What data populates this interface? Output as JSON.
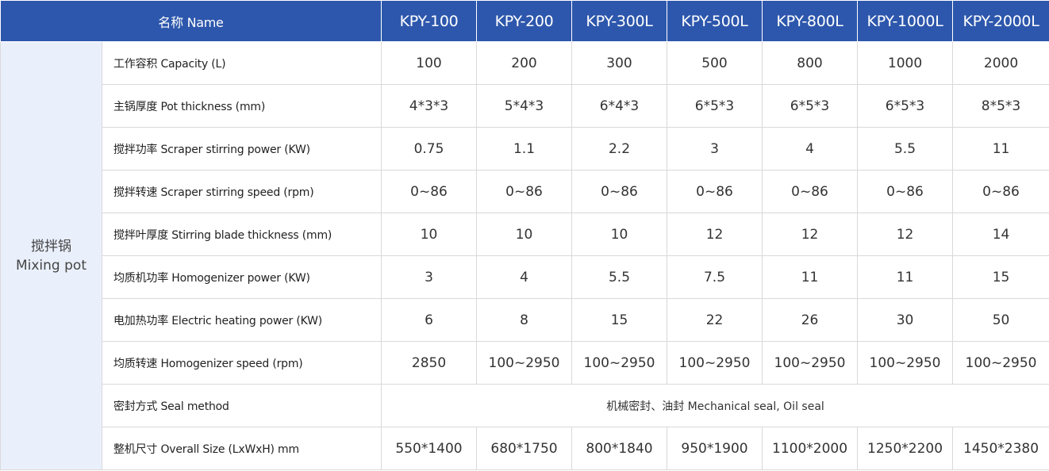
{
  "header": {
    "name_label": "名称 Name",
    "models": [
      "KPY-100",
      "KPY-200",
      "KPY-300L",
      "KPY-500L",
      "KPY-800L",
      "KPY-1000L",
      "KPY-2000L"
    ]
  },
  "group": {
    "label_zh": "搅拌锅",
    "label_en": "Mixing pot"
  },
  "rows": [
    {
      "label": "工作容积 Capacity (L)",
      "values": [
        "100",
        "200",
        "300",
        "500",
        "800",
        "1000",
        "2000"
      ]
    },
    {
      "label": "主锅厚度 Pot thickness (mm)",
      "values": [
        "4*3*3",
        "5*4*3",
        "6*4*3",
        "6*5*3",
        "6*5*3",
        "6*5*3",
        "8*5*3"
      ]
    },
    {
      "label": "搅拌功率 Scraper stirring power (KW)",
      "values": [
        "0.75",
        "1.1",
        "2.2",
        "3",
        "4",
        "5.5",
        "11"
      ]
    },
    {
      "label": "搅拌转速 Scraper stirring speed (rpm)",
      "values": [
        "0~86",
        "0~86",
        "0~86",
        "0~86",
        "0~86",
        "0~86",
        "0~86"
      ]
    },
    {
      "label": "搅拌叶厚度 Stirring blade thickness (mm)",
      "values": [
        "10",
        "10",
        "10",
        "12",
        "12",
        "12",
        "14"
      ]
    },
    {
      "label": "均质机功率 Homogenizer power (KW)",
      "values": [
        "3",
        "4",
        "5.5",
        "7.5",
        "11",
        "11",
        "15"
      ]
    },
    {
      "label": "电加热功率 Electric heating power (KW)",
      "values": [
        "6",
        "8",
        "15",
        "22",
        "26",
        "30",
        "50"
      ]
    },
    {
      "label": "均质转速 Homogenizer speed (rpm)",
      "values": [
        "2850",
        "100~2950",
        "100~2950",
        "100~2950",
        "100~2950",
        "100~2950",
        "100~2950"
      ]
    }
  ],
  "seal_row": {
    "label": "密封方式 Seal method",
    "value": "机械密封、油封 Mechanical seal, Oil seal"
  },
  "size_row": {
    "label": "整机尺寸 Overall Size (LxWxH) mm",
    "values": [
      "550*1400",
      "680*1750",
      "800*1840",
      "950*1900",
      "1100*2000",
      "1250*2200",
      "1450*2380"
    ]
  },
  "colors": {
    "header_bg": "#2d57ac",
    "group_bg": "#eaf0fb",
    "grid": "#d9d9d9"
  }
}
